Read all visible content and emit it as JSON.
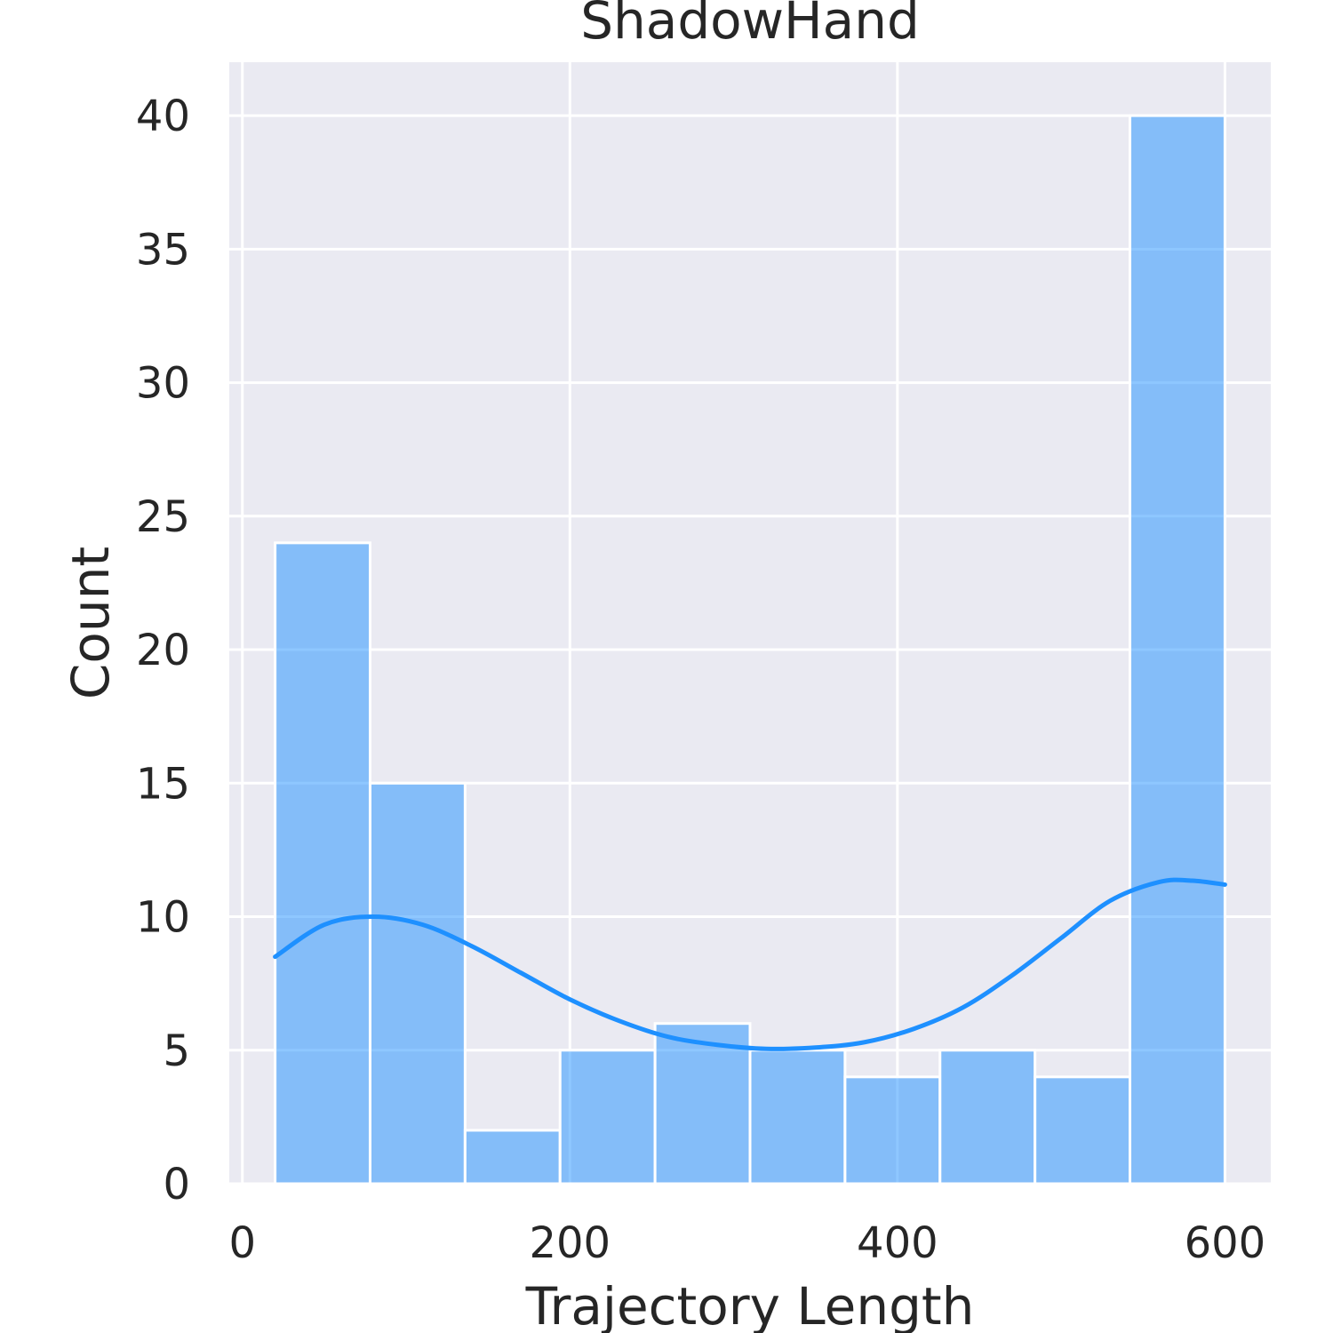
{
  "chart_data": {
    "type": "bar",
    "title": "ShadowHand",
    "xlabel": "Trajectory Length",
    "ylabel": "Count",
    "xlim": [
      -8,
      628
    ],
    "ylim": [
      0,
      42
    ],
    "xticks": [
      0,
      200,
      400,
      600
    ],
    "yticks": [
      0,
      5,
      10,
      15,
      20,
      25,
      30,
      35,
      40
    ],
    "grid": true,
    "bins": [
      {
        "x0": 20,
        "x1": 78,
        "count": 24
      },
      {
        "x0": 78,
        "x1": 136,
        "count": 15
      },
      {
        "x0": 136,
        "x1": 194,
        "count": 2
      },
      {
        "x0": 194,
        "x1": 252,
        "count": 5
      },
      {
        "x0": 252,
        "x1": 310,
        "count": 6
      },
      {
        "x0": 310,
        "x1": 368,
        "count": 5
      },
      {
        "x0": 368,
        "x1": 426,
        "count": 4
      },
      {
        "x0": 426,
        "x1": 484,
        "count": 5
      },
      {
        "x0": 484,
        "x1": 542,
        "count": 4
      },
      {
        "x0": 542,
        "x1": 600,
        "count": 40
      }
    ],
    "kde": {
      "x": [
        20,
        50,
        80,
        110,
        140,
        170,
        200,
        230,
        260,
        290,
        320,
        350,
        380,
        410,
        440,
        470,
        500,
        530,
        560,
        580,
        600
      ],
      "y": [
        8.5,
        9.7,
        10.0,
        9.7,
        8.9,
        7.9,
        6.9,
        6.1,
        5.5,
        5.2,
        5.05,
        5.1,
        5.3,
        5.8,
        6.6,
        7.8,
        9.2,
        10.6,
        11.3,
        11.35,
        11.2
      ]
    },
    "colors": {
      "bar": "#1e90ff",
      "line": "#1e90ff",
      "background": "#eaeaf2"
    }
  }
}
